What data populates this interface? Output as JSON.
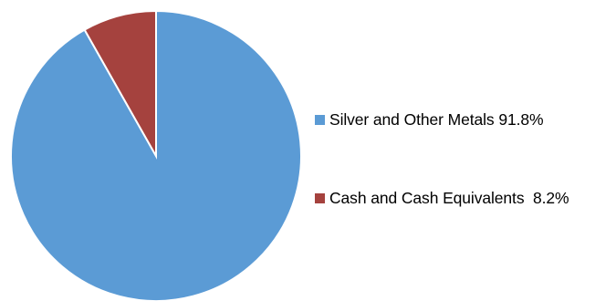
{
  "chart_data": {
    "type": "pie",
    "title": "",
    "start_angle_deg": 0,
    "direction": "clockwise",
    "legend_position": "right",
    "slices": [
      {
        "label": "Silver and Other Metals",
        "value": 91.8,
        "value_label": "91.8%",
        "legend_text": "Silver and Other Metals 91.8%",
        "color": "#5b9bd5"
      },
      {
        "label": "Cash and Cash Equivalents",
        "value": 8.2,
        "value_label": "8.2%",
        "legend_text": "Cash and Cash Equivalents  8.2%",
        "color": "#a5423e"
      }
    ]
  }
}
